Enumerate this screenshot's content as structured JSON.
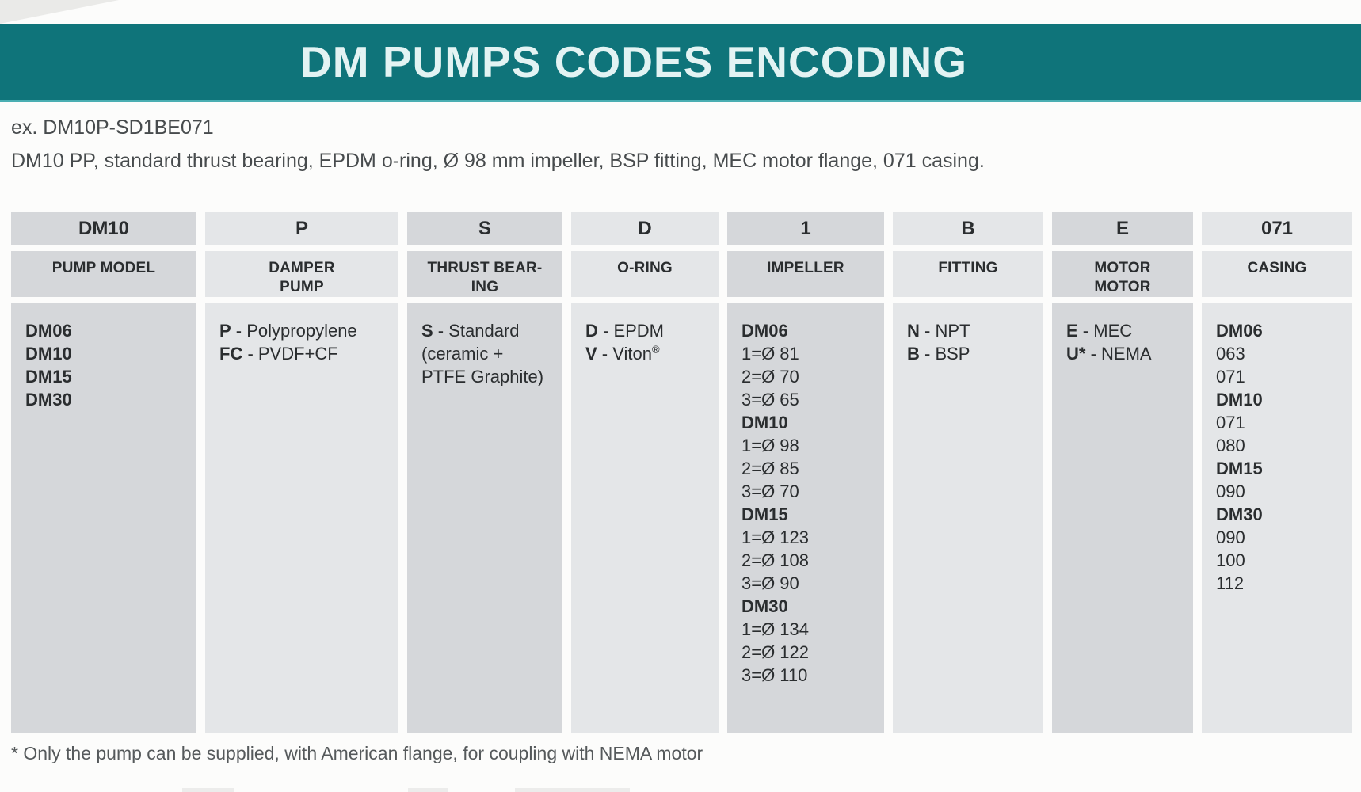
{
  "title": "DM PUMPS CODES ENCODING",
  "example": {
    "code_line": "ex. DM10P-SD1BE071",
    "description": "DM10 PP, standard thrust bearing, EPDM o-ring, Ø 98 mm impeller, BSP fitting, MEC motor flange, 071 casing."
  },
  "table": {
    "columns": [
      {
        "code": "DM10",
        "category": [
          "PUMP MODEL"
        ],
        "lines": [
          {
            "b": "DM06"
          },
          {
            "b": "DM10"
          },
          {
            "b": "DM15"
          },
          {
            "b": "DM30"
          }
        ]
      },
      {
        "code": "P",
        "category": [
          "DAMPER",
          "PUMP"
        ],
        "lines": [
          {
            "b": "P",
            "t": " - Polypropylene"
          },
          {
            "b": "FC",
            "t": " - PVDF+CF"
          }
        ]
      },
      {
        "code": "S",
        "category": [
          "THRUST BEAR-",
          "ING"
        ],
        "lines": [
          {
            "b": "S",
            "t": " - Standard"
          },
          {
            "t": "(ceramic +"
          },
          {
            "t": "PTFE Graphite)"
          }
        ]
      },
      {
        "code": "D",
        "category": [
          "O-RING"
        ],
        "lines": [
          {
            "b": "D",
            "t": " - EPDM"
          },
          {
            "b": "V",
            "t": " - Viton",
            "sup": "®"
          }
        ]
      },
      {
        "code": "1",
        "category": [
          "IMPELLER"
        ],
        "lines": [
          {
            "b": "DM06"
          },
          {
            "t": "1=Ø 81"
          },
          {
            "t": "2=Ø 70"
          },
          {
            "t": "3=Ø 65"
          },
          {
            "b": "DM10"
          },
          {
            "t": "1=Ø 98"
          },
          {
            "t": "2=Ø 85"
          },
          {
            "t": "3=Ø 70"
          },
          {
            "b": "DM15"
          },
          {
            "t": "1=Ø 123"
          },
          {
            "t": "2=Ø 108"
          },
          {
            "t": "3=Ø 90"
          },
          {
            "b": "DM30"
          },
          {
            "t": "1=Ø 134"
          },
          {
            "t": "2=Ø 122"
          },
          {
            "t": "3=Ø 110"
          }
        ]
      },
      {
        "code": "B",
        "category": [
          "FITTING"
        ],
        "lines": [
          {
            "b": "N",
            "t": " - NPT"
          },
          {
            "b": "B",
            "t": " - BSP"
          }
        ]
      },
      {
        "code": "E",
        "category": [
          "MOTOR",
          "MOTOR"
        ],
        "lines": [
          {
            "b": "E",
            "t": " - MEC"
          },
          {
            "b": "U*",
            "t": " - NEMA"
          }
        ]
      },
      {
        "code": "071",
        "category": [
          "CASING"
        ],
        "lines": [
          {
            "b": "DM06"
          },
          {
            "t": "063"
          },
          {
            "t": "071"
          },
          {
            "b": "DM10"
          },
          {
            "t": "071"
          },
          {
            "t": "080"
          },
          {
            "b": "DM15"
          },
          {
            "t": "090"
          },
          {
            "b": "DM30"
          },
          {
            "t": "090"
          },
          {
            "t": "100"
          },
          {
            "t": "112"
          }
        ]
      }
    ]
  },
  "footnote": "* Only the pump can be supplied, with American flange, for coupling with NEMA motor",
  "colors": {
    "accent_teal": "#0f747a",
    "accent_teal_light": "#4aaeb2",
    "cell_dark": "#d5d7da",
    "cell_light": "#e4e6e8"
  }
}
